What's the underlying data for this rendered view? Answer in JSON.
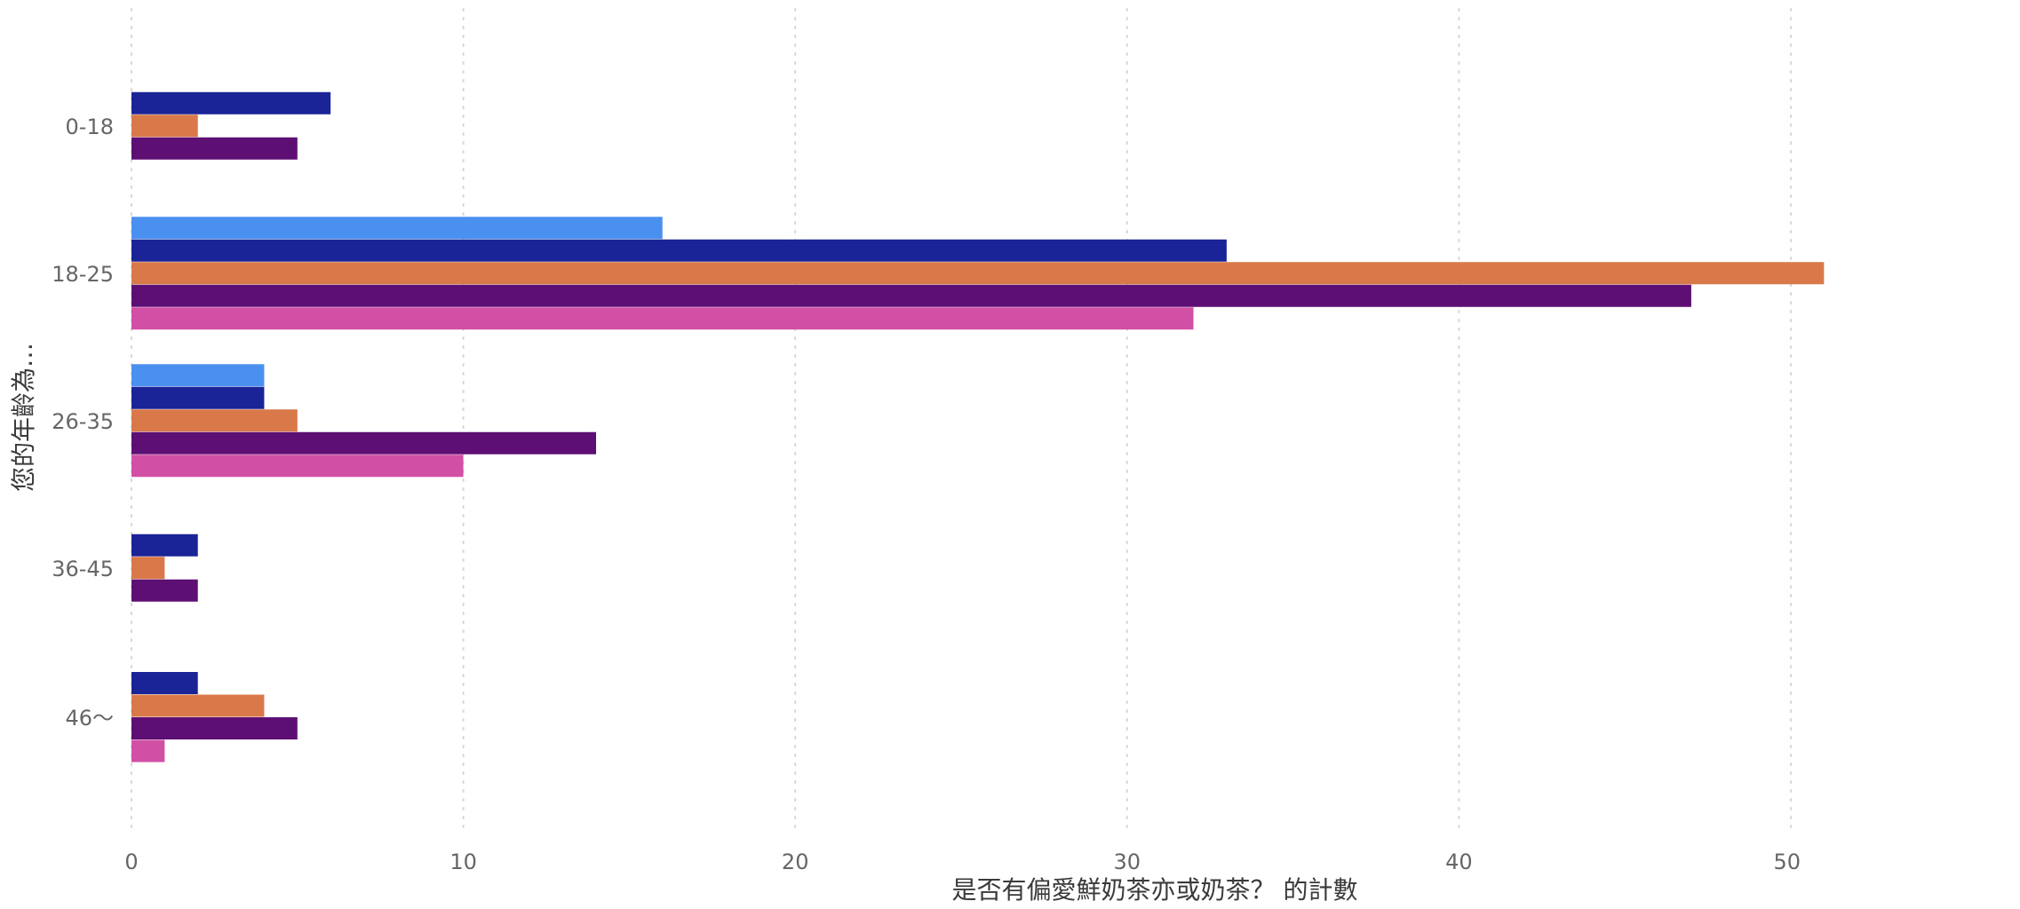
{
  "chart_data": {
    "type": "bar",
    "orientation": "horizontal",
    "title": "",
    "xlabel": "是否有偏愛鮮奶茶亦或奶茶？ 的計數",
    "ylabel": "您的年齡為…",
    "categories": [
      "0-18",
      "18-25",
      "26-35",
      "36-45",
      "46～"
    ],
    "xlim": [
      0,
      50
    ],
    "x_ticks": [
      0,
      10,
      20,
      30,
      40,
      50
    ],
    "grid": true,
    "legend": "none",
    "series": [
      {
        "color": "#4a90f0",
        "values": [
          0,
          16,
          4,
          0,
          0
        ]
      },
      {
        "color": "#1a2496",
        "values": [
          6,
          33,
          4,
          2,
          2
        ]
      },
      {
        "color": "#d97848",
        "values": [
          2,
          51,
          5,
          1,
          4
        ]
      },
      {
        "color": "#5e0f73",
        "values": [
          5,
          47,
          14,
          2,
          5
        ]
      },
      {
        "color": "#d150a6",
        "values": [
          0,
          32,
          10,
          0,
          1
        ]
      }
    ]
  }
}
